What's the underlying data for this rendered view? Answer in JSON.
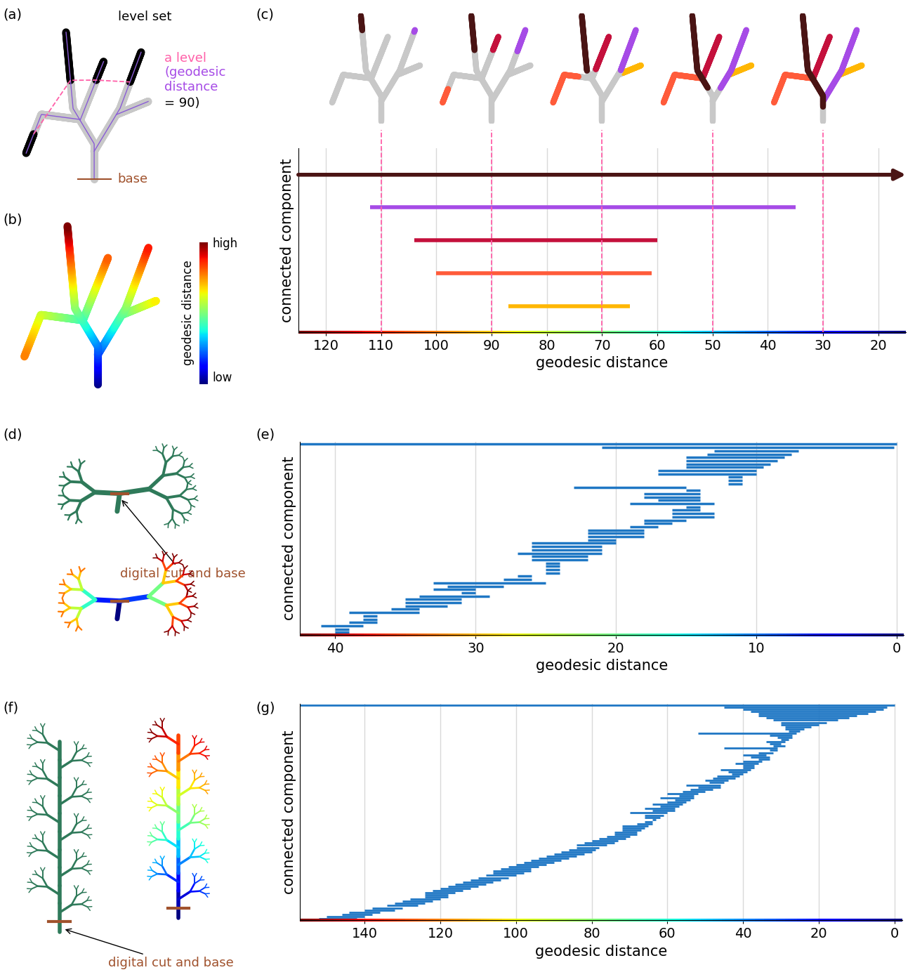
{
  "panel_labels": [
    "(a)",
    "(b)",
    "(c)",
    "(d)",
    "(e)",
    "(f)",
    "(g)"
  ],
  "panel_a": {
    "level_set_label": "level set",
    "level_label": "a level",
    "distance_label": "(geodesic\ndistance",
    "value_label": "= 90)",
    "level": 90,
    "base_label": "base"
  },
  "panel_b": {
    "colorbar_label": "geodesic distance",
    "high_label": "high",
    "low_label": "low"
  },
  "panel_d": {
    "annotation": "digital cut and base"
  },
  "panel_f": {
    "annotation": "digital cut and base"
  },
  "chart_data": [
    {
      "type": "barcode",
      "xlabel": "geodesic distance",
      "ylabel": "connected component",
      "xlim": [
        125,
        15
      ],
      "xticks": [
        120,
        110,
        100,
        90,
        80,
        70,
        60,
        50,
        40,
        30,
        20
      ],
      "grid": true,
      "tick_labels": "x",
      "levels": [
        110,
        90,
        70,
        50,
        30
      ],
      "bars": [
        {
          "start": 125,
          "end": null,
          "color": "#4a1414"
        },
        {
          "start": 112,
          "end": 35,
          "color": "#a64be6"
        },
        {
          "start": 104,
          "end": 60,
          "color": "#c4103c"
        },
        {
          "start": 100,
          "end": 61,
          "color": "#ff5b3a"
        },
        {
          "start": 87,
          "end": 65,
          "color": "#ffb703"
        }
      ]
    },
    {
      "type": "barcode",
      "xlabel": "geodesic distance",
      "ylabel": "connected component",
      "xlim": [
        42.5,
        -0.5
      ],
      "xticks": [
        40,
        30,
        20,
        10,
        0
      ],
      "grid": true,
      "tick_labels": "x",
      "color": "#1f77c4",
      "bars": [
        [
          42.5,
          0
        ],
        [
          21,
          0.2
        ],
        [
          13,
          7
        ],
        [
          13.5,
          7.5
        ],
        [
          15,
          8
        ],
        [
          15,
          8.5
        ],
        [
          15,
          9
        ],
        [
          15,
          9.5
        ],
        [
          17,
          10
        ],
        [
          17,
          10
        ],
        [
          12,
          11
        ],
        [
          12,
          11
        ],
        [
          12,
          11
        ],
        [
          23,
          15
        ],
        [
          15,
          14
        ],
        [
          18,
          14
        ],
        [
          18,
          14
        ],
        [
          17,
          14
        ],
        [
          19,
          13
        ],
        [
          15,
          14
        ],
        [
          16,
          14
        ],
        [
          16,
          13
        ],
        [
          16,
          13
        ],
        [
          18,
          15
        ],
        [
          18,
          16
        ],
        [
          19,
          17
        ],
        [
          22,
          18
        ],
        [
          22,
          18
        ],
        [
          22,
          18
        ],
        [
          22,
          20
        ],
        [
          26,
          20
        ],
        [
          26,
          21
        ],
        [
          26,
          21
        ],
        [
          27,
          21
        ],
        [
          26,
          22
        ],
        [
          26,
          22
        ],
        [
          25,
          24
        ],
        [
          25,
          24
        ],
        [
          25,
          24
        ],
        [
          25,
          24
        ],
        [
          27,
          26
        ],
        [
          28,
          26
        ],
        [
          33,
          25
        ],
        [
          32,
          28
        ],
        [
          33,
          30
        ],
        [
          31,
          30
        ],
        [
          34,
          29
        ],
        [
          35,
          31
        ],
        [
          35,
          31
        ],
        [
          35,
          32
        ],
        [
          36,
          34
        ],
        [
          39,
          34
        ],
        [
          38,
          37
        ],
        [
          38,
          37
        ],
        [
          39,
          37
        ],
        [
          41,
          38
        ],
        [
          40,
          39
        ],
        [
          40,
          39
        ]
      ]
    },
    {
      "type": "barcode",
      "xlabel": "geodesic distance",
      "ylabel": "connected component",
      "xlim": [
        157,
        -2
      ],
      "xticks": [
        140,
        120,
        100,
        80,
        60,
        40,
        20,
        0
      ],
      "grid": true,
      "tick_labels": "x",
      "color": "#1f77c4",
      "bars": [
        [
          157,
          0
        ],
        [
          45,
          2
        ],
        [
          40,
          3
        ],
        [
          38,
          5
        ],
        [
          36,
          7
        ],
        [
          36,
          10
        ],
        [
          34,
          12
        ],
        [
          32,
          15
        ],
        [
          30,
          18
        ],
        [
          30,
          20
        ],
        [
          29,
          22
        ],
        [
          29,
          24
        ],
        [
          28,
          25
        ],
        [
          52,
          26
        ],
        [
          33,
          27
        ],
        [
          31,
          27
        ],
        [
          30,
          28
        ],
        [
          34,
          29
        ],
        [
          33,
          30
        ],
        [
          32,
          29
        ],
        [
          45,
          31
        ],
        [
          33,
          31
        ],
        [
          36,
          32
        ],
        [
          40,
          34
        ],
        [
          38,
          33
        ],
        [
          36,
          33
        ],
        [
          40,
          35
        ],
        [
          42,
          36
        ],
        [
          40,
          37
        ],
        [
          40,
          37
        ],
        [
          46,
          38
        ],
        [
          44,
          39
        ],
        [
          43,
          40
        ],
        [
          47,
          41
        ],
        [
          48,
          42
        ],
        [
          50,
          44
        ],
        [
          49,
          45
        ],
        [
          55,
          46
        ],
        [
          52,
          46
        ],
        [
          54,
          48
        ],
        [
          56,
          50
        ],
        [
          60,
          52
        ],
        [
          57,
          53
        ],
        [
          62,
          53
        ],
        [
          58,
          54
        ],
        [
          60,
          55
        ],
        [
          64,
          56
        ],
        [
          62,
          57
        ],
        [
          66,
          58
        ],
        [
          64,
          58
        ],
        [
          70,
          60
        ],
        [
          66,
          61
        ],
        [
          66,
          62
        ],
        [
          64,
          63
        ],
        [
          66,
          64
        ],
        [
          68,
          64
        ],
        [
          72,
          65
        ],
        [
          72,
          66
        ],
        [
          72,
          67
        ],
        [
          74,
          68
        ],
        [
          74,
          68
        ],
        [
          76,
          70
        ],
        [
          78,
          71
        ],
        [
          80,
          73
        ],
        [
          82,
          74
        ],
        [
          84,
          76
        ],
        [
          84,
          78
        ],
        [
          86,
          79
        ],
        [
          88,
          80
        ],
        [
          90,
          82
        ],
        [
          92,
          84
        ],
        [
          94,
          86
        ],
        [
          96,
          88
        ],
        [
          98,
          90
        ],
        [
          100,
          92
        ],
        [
          102,
          94
        ],
        [
          104,
          96
        ],
        [
          106,
          96
        ],
        [
          106,
          98
        ],
        [
          108,
          100
        ],
        [
          110,
          102
        ],
        [
          112,
          104
        ],
        [
          114,
          106
        ],
        [
          116,
          108
        ],
        [
          118,
          110
        ],
        [
          120,
          112
        ],
        [
          122,
          114
        ],
        [
          124,
          116
        ],
        [
          124,
          118
        ],
        [
          124,
          118
        ],
        [
          128,
          120
        ],
        [
          130,
          122
        ],
        [
          132,
          124
        ],
        [
          134,
          126
        ],
        [
          138,
          130
        ],
        [
          140,
          132
        ],
        [
          144,
          136
        ],
        [
          146,
          138
        ],
        [
          150,
          140
        ],
        [
          152,
          142
        ]
      ]
    }
  ]
}
